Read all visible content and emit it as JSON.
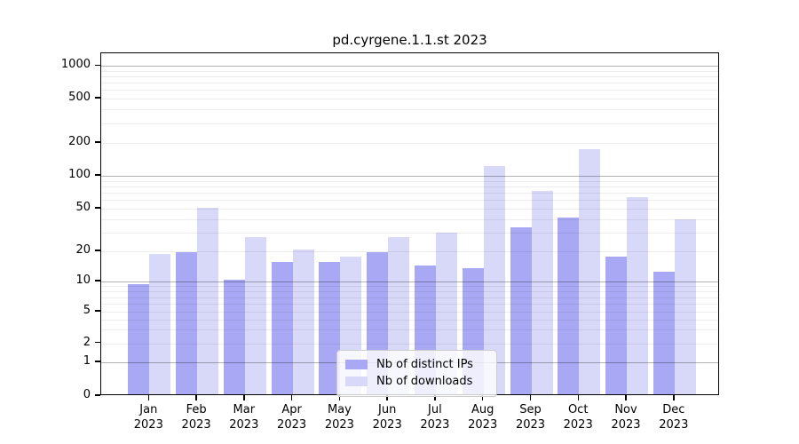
{
  "title": "pd.cyrgene.1.1.st 2023",
  "chart_data": {
    "type": "bar",
    "title": "pd.cyrgene.1.1.st 2023",
    "categories": [
      "Jan",
      "Feb",
      "Mar",
      "Apr",
      "May",
      "Jun",
      "Jul",
      "Aug",
      "Sep",
      "Oct",
      "Nov",
      "Dec"
    ],
    "category_year": "2023",
    "series": [
      {
        "name": "Nb of distinct IPs",
        "color": "#a8a8f4",
        "values": [
          9,
          19,
          10,
          15,
          15,
          19,
          14,
          13,
          32,
          40,
          17,
          12
        ]
      },
      {
        "name": "Nb of downloads",
        "color": "#d8d8f8",
        "values": [
          18,
          49,
          26,
          20,
          17,
          26,
          29,
          118,
          70,
          170,
          62,
          38
        ]
      }
    ],
    "y_ticks": [
      0,
      1,
      2,
      5,
      10,
      20,
      50,
      100,
      200,
      500,
      1000
    ],
    "y_scale": "log-like with zero baseline",
    "ylim": [
      0,
      1400
    ],
    "grid": "horizontal, major lines at powers of 10, faint minor log lines, drawn above bars",
    "legend_position": "lower center"
  }
}
